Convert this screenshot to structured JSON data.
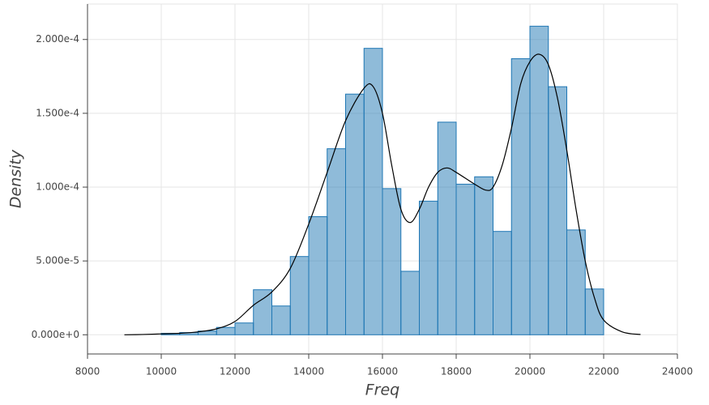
{
  "chart_data": {
    "type": "histogram",
    "x_label": "Freq",
    "y_label": "Density",
    "bins": [
      10000,
      10500,
      11000,
      11500,
      12000,
      12500,
      13000,
      13500,
      14000,
      14500,
      15000,
      15500,
      16000,
      16500,
      17000,
      17500,
      18000,
      18500,
      19000,
      19500,
      20000,
      20500,
      21000,
      21500,
      22000
    ],
    "values": [
      1e-06,
      1.5e-06,
      2.5e-06,
      5e-06,
      8e-06,
      3.05e-05,
      1.95e-05,
      5.3e-05,
      8e-05,
      0.000126,
      0.000163,
      0.000194,
      9.9e-05,
      4.3e-05,
      9.05e-05,
      0.000144,
      0.000102,
      0.000107,
      7e-05,
      0.000187,
      0.000209,
      0.000168,
      7.1e-05,
      3.1e-05
    ],
    "color": "#1f77b4",
    "line_x": [
      9000,
      9500,
      10000,
      10500,
      11000,
      11500,
      12000,
      12500,
      13000,
      13500,
      14000,
      14500,
      15000,
      15500,
      15750,
      16000,
      16250,
      16500,
      16750,
      17000,
      17250,
      17500,
      17750,
      18000,
      18500,
      18800,
      19000,
      19250,
      19500,
      19750,
      20000,
      20250,
      20500,
      20750,
      21000,
      21250,
      21500,
      21750,
      22000,
      22500,
      23000
    ],
    "line_values": [
      0,
      2e-07,
      6e-07,
      1e-06,
      2e-06,
      4e-06,
      9e-06,
      2e-05,
      2.9e-05,
      4.5e-05,
      7.5e-05,
      0.00011,
      0.000145,
      0.000167,
      0.000168,
      0.00015,
      0.000115,
      8.5e-05,
      7.6e-05,
      8.5e-05,
      0.0001,
      0.00011,
      0.000113,
      0.00011,
      0.000102,
      9.8e-05,
      0.0001,
      0.000115,
      0.00014,
      0.00017,
      0.000185,
      0.00019,
      0.000183,
      0.00016,
      0.000125,
      8.5e-05,
      5e-05,
      2.5e-05,
      1e-05,
      2e-06,
      2e-07
    ],
    "line_color": "#000000",
    "xlim": [
      8000,
      24000
    ],
    "ylim": [
      -1.3e-05,
      0.000224
    ],
    "xticks": [
      8000,
      10000,
      12000,
      14000,
      16000,
      18000,
      20000,
      22000,
      24000
    ],
    "yticks": [
      {
        "value": 0,
        "label": "0.000e+0"
      },
      {
        "value": 5e-05,
        "label": "5.000e-5"
      },
      {
        "value": 0.0001,
        "label": "1.000e-4"
      },
      {
        "value": 0.00015,
        "label": "1.500e-4"
      },
      {
        "value": 0.0002,
        "label": "2.000e-4"
      }
    ],
    "grid": true
  }
}
